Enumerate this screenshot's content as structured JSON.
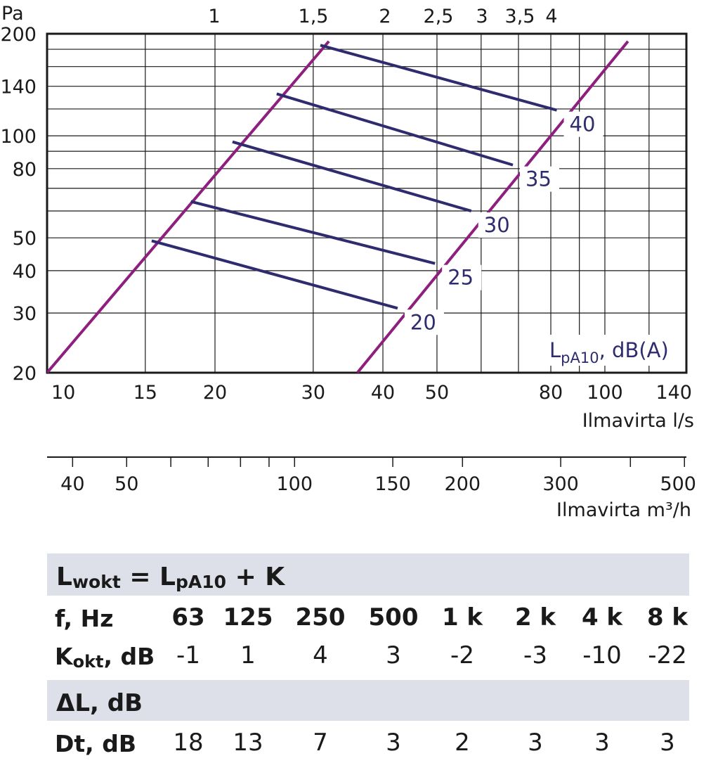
{
  "chart_data": {
    "type": "line",
    "xscale": "log",
    "yscale": "log",
    "xlim": [
      10,
      140
    ],
    "ylim": [
      20,
      200
    ],
    "y_unit_label": "Pa",
    "y_ticks": [
      20,
      30,
      40,
      50,
      80,
      100,
      140,
      200
    ],
    "x_ticks": [
      10,
      15,
      20,
      30,
      40,
      50,
      80,
      100,
      140
    ],
    "xlabel": "Ilmavirta l/s",
    "top_axis_ticks": [
      "1",
      "1,5",
      "2",
      "2,5",
      "3",
      "3,5",
      "4"
    ],
    "m3h_axis_ticks": [
      40,
      50,
      100,
      150,
      200,
      300,
      500
    ],
    "m3h_axis_label": "Ilmavirta m³/h",
    "boundary_lines": [
      {
        "points": [
          [
            10,
            20
          ],
          [
            32,
            190
          ]
        ]
      },
      {
        "points": [
          [
            36,
            20
          ],
          [
            110,
            190
          ]
        ]
      }
    ],
    "sound_level_label": "LpA10, dB(A)",
    "series": [
      {
        "name": "20",
        "x": [
          15.4,
          42.5
        ],
        "y": [
          49,
          31
        ]
      },
      {
        "name": "25",
        "x": [
          18.1,
          49.6
        ],
        "y": [
          64,
          42
        ]
      },
      {
        "name": "30",
        "x": [
          21.5,
          57.6
        ],
        "y": [
          96,
          60
        ]
      },
      {
        "name": "35",
        "x": [
          25.8,
          68.4
        ],
        "y": [
          133,
          82
        ]
      },
      {
        "name": "40",
        "x": [
          30.9,
          82.0
        ],
        "y": [
          185,
          119
        ]
      }
    ],
    "colors": {
      "boundary": "#8e1f7e",
      "series": "#2e2c6e",
      "grid": "#1a1a1a"
    }
  },
  "table": {
    "formula_main": "L",
    "formula_sub1": "wokt",
    "formula_eq": " = L",
    "formula_sub2": "pA10",
    "formula_tail": " + K",
    "f_label": "f, Hz",
    "frequencies": [
      "63",
      "125",
      "250",
      "500",
      "1 k",
      "2 k",
      "4 k",
      "8 k"
    ],
    "k_label_main": "K",
    "k_label_sub": "okt",
    "k_label_tail": ", dB",
    "k_values": [
      "-1",
      "1",
      "4",
      "3",
      "-2",
      "-3",
      "-10",
      "-22"
    ],
    "delta_label": "ΔL, dB",
    "dt_label": "Dt, dB",
    "dt_values": [
      "18",
      "13",
      "7",
      "3",
      "2",
      "3",
      "3",
      "3"
    ],
    "band_color": "#dde0e9"
  }
}
